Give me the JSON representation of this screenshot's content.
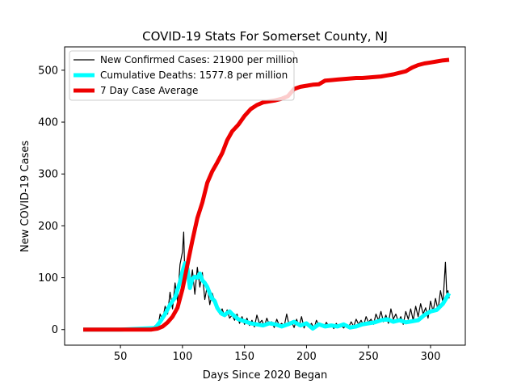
{
  "chart_data": {
    "type": "line",
    "title": "COVID-19 Stats For Somerset County, NJ",
    "xlabel": "Days Since 2020 Began",
    "ylabel": "New COVID-19 Cases",
    "xlim": [
      5,
      328
    ],
    "ylim": [
      -30,
      545
    ],
    "xticks": [
      50,
      100,
      150,
      200,
      250,
      300
    ],
    "yticks": [
      0,
      100,
      200,
      300,
      400,
      500
    ],
    "grid": false,
    "legend_position": "top-left",
    "series": [
      {
        "name": "New Confirmed Cases: 21900 per million",
        "color": "#000000",
        "x": [
          20,
          30,
          40,
          50,
          60,
          70,
          75,
          78,
          80,
          82,
          84,
          86,
          88,
          90,
          92,
          94,
          96,
          98,
          100,
          101,
          102,
          104,
          106,
          108,
          110,
          112,
          114,
          116,
          118,
          120,
          122,
          124,
          126,
          128,
          130,
          132,
          134,
          136,
          138,
          140,
          142,
          144,
          146,
          148,
          150,
          152,
          154,
          156,
          158,
          160,
          162,
          164,
          166,
          168,
          170,
          172,
          174,
          176,
          178,
          180,
          182,
          184,
          186,
          188,
          190,
          192,
          194,
          196,
          198,
          200,
          202,
          204,
          206,
          208,
          210,
          212,
          214,
          216,
          218,
          220,
          222,
          224,
          226,
          228,
          230,
          232,
          234,
          236,
          238,
          240,
          242,
          244,
          246,
          248,
          250,
          252,
          254,
          256,
          258,
          260,
          262,
          264,
          266,
          268,
          270,
          272,
          274,
          276,
          278,
          280,
          282,
          284,
          286,
          288,
          290,
          292,
          294,
          296,
          298,
          300,
          302,
          304,
          306,
          308,
          310,
          312,
          313,
          314,
          315
        ],
        "values": [
          0,
          0,
          0,
          0,
          0,
          0,
          0,
          8,
          2,
          30,
          18,
          45,
          30,
          72,
          40,
          90,
          55,
          125,
          150,
          188,
          95,
          135,
          80,
          115,
          68,
          120,
          82,
          110,
          58,
          84,
          48,
          70,
          55,
          45,
          30,
          40,
          25,
          38,
          22,
          28,
          18,
          30,
          12,
          25,
          10,
          22,
          8,
          18,
          5,
          28,
          12,
          18,
          6,
          22,
          10,
          15,
          4,
          20,
          8,
          12,
          6,
          30,
          8,
          15,
          4,
          20,
          6,
          25,
          3,
          15,
          5,
          12,
          2,
          18,
          8,
          10,
          4,
          14,
          6,
          9,
          2,
          12,
          4,
          8,
          3,
          10,
          5,
          15,
          6,
          20,
          10,
          18,
          8,
          25,
          14,
          20,
          10,
          30,
          18,
          35,
          15,
          28,
          12,
          40,
          20,
          30,
          15,
          25,
          10,
          35,
          20,
          40,
          18,
          45,
          25,
          50,
          30,
          42,
          22,
          55,
          35,
          60,
          38,
          75,
          52,
          130,
          70,
          75,
          60
        ]
      },
      {
        "name": "Cumulative Deaths: 1577.8 per million",
        "color": "#00ffff",
        "x": [
          20,
          50,
          78,
          82,
          86,
          90,
          94,
          98,
          100,
          102,
          104,
          106,
          108,
          110,
          112,
          114,
          116,
          118,
          120,
          122,
          124,
          126,
          128,
          130,
          132,
          134,
          136,
          138,
          140,
          142,
          145,
          150,
          155,
          160,
          165,
          170,
          175,
          180,
          185,
          190,
          195,
          200,
          205,
          210,
          215,
          220,
          225,
          230,
          235,
          240,
          245,
          250,
          255,
          260,
          265,
          270,
          275,
          280,
          285,
          290,
          295,
          300,
          305,
          310,
          315
        ],
        "values": [
          0,
          0,
          3,
          15,
          30,
          48,
          62,
          92,
          112,
          128,
          118,
          80,
          98,
          102,
          100,
          108,
          95,
          90,
          82,
          70,
          60,
          55,
          42,
          35,
          30,
          28,
          32,
          35,
          30,
          26,
          20,
          16,
          12,
          10,
          8,
          12,
          10,
          6,
          10,
          15,
          8,
          12,
          2,
          10,
          6,
          8,
          6,
          10,
          4,
          6,
          10,
          12,
          14,
          18,
          20,
          15,
          18,
          14,
          16,
          18,
          28,
          35,
          38,
          50,
          70
        ]
      },
      {
        "name": "7 Day Case Average",
        "color": "#ee0000",
        "x": [
          20,
          50,
          75,
          80,
          84,
          88,
          92,
          96,
          100,
          104,
          108,
          112,
          116,
          120,
          124,
          128,
          132,
          136,
          140,
          145,
          150,
          155,
          160,
          165,
          170,
          175,
          180,
          185,
          190,
          195,
          200,
          205,
          210,
          215,
          220,
          225,
          230,
          235,
          240,
          245,
          250,
          255,
          260,
          265,
          270,
          275,
          280,
          285,
          290,
          295,
          300,
          305,
          310,
          315
        ],
        "values": [
          0,
          0,
          0,
          2,
          6,
          14,
          25,
          42,
          78,
          125,
          172,
          215,
          245,
          283,
          305,
          322,
          340,
          365,
          382,
          395,
          412,
          425,
          433,
          438,
          440,
          442,
          445,
          450,
          464,
          468,
          470,
          472,
          473,
          480,
          481,
          482,
          483,
          484,
          485,
          485,
          486,
          487,
          488,
          490,
          492,
          495,
          498,
          505,
          510,
          513,
          515,
          517,
          519,
          520
        ]
      }
    ]
  }
}
